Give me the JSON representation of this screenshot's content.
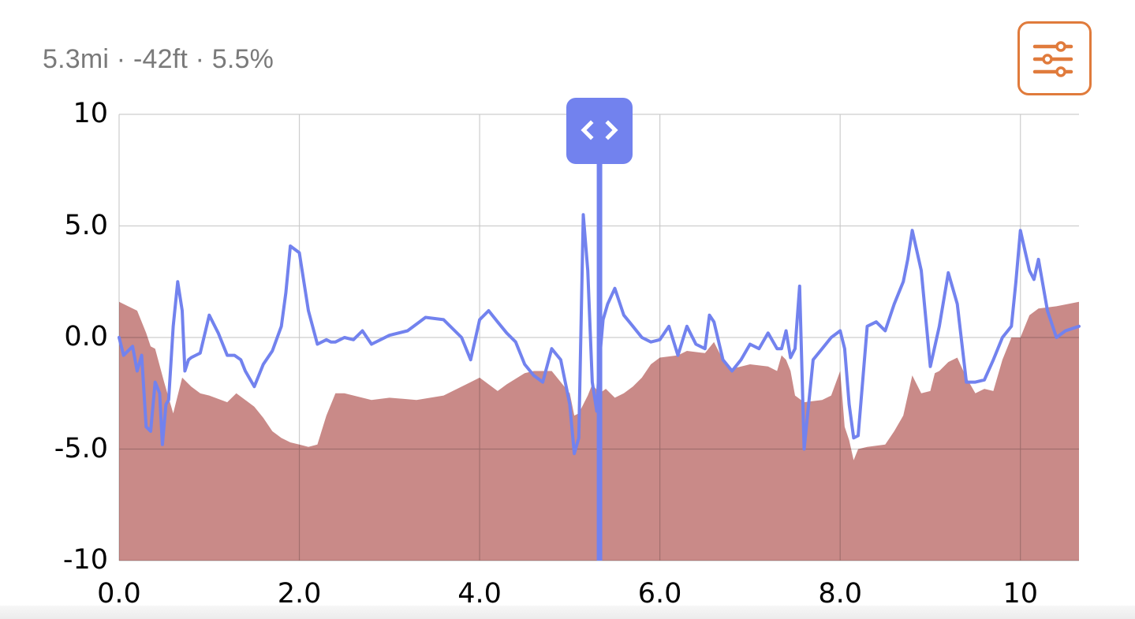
{
  "header": {
    "stats_text": "5.3mi · -42ft · 5.5%",
    "distance": "5.3mi",
    "elevation_change": "-42ft",
    "grade": "5.5%",
    "filter_button_icon": "sliders-icon"
  },
  "colors": {
    "grade_line": "#7282ee",
    "elevation_fill": "#c98a88",
    "gridline": "#c8c8c8",
    "gridline_on_fill": "#a86462",
    "accent": "#e07b3c",
    "stats_text": "#7a7a7a"
  },
  "scrubber": {
    "position_mi": 5.33,
    "icon": "chevron-left-right-icon"
  },
  "chart_data": {
    "type": "line",
    "title": "",
    "xlabel": "",
    "ylabel": "",
    "xlim": [
      0,
      10.65
    ],
    "ylim": [
      -10,
      10
    ],
    "grid": true,
    "x_ticks": [
      "0.0",
      "2.0",
      "4.0",
      "6.0",
      "8.0",
      "10"
    ],
    "y_ticks": [
      "10",
      "5.0",
      "0.0",
      "-5.0",
      "-10"
    ],
    "series": [
      {
        "name": "grade",
        "type": "line",
        "x": [
          0,
          0.05,
          0.15,
          0.2,
          0.25,
          0.3,
          0.35,
          0.4,
          0.45,
          0.48,
          0.52,
          0.55,
          0.6,
          0.65,
          0.7,
          0.73,
          0.77,
          0.8,
          0.85,
          0.9,
          1.0,
          1.1,
          1.2,
          1.28,
          1.35,
          1.4,
          1.5,
          1.6,
          1.7,
          1.8,
          1.85,
          1.9,
          2.0,
          2.1,
          2.2,
          2.3,
          2.35,
          2.4,
          2.5,
          2.6,
          2.7,
          2.8,
          3.0,
          3.2,
          3.4,
          3.6,
          3.8,
          3.9,
          4.0,
          4.1,
          4.2,
          4.3,
          4.4,
          4.5,
          4.6,
          4.7,
          4.8,
          4.9,
          5.0,
          5.05,
          5.1,
          5.15,
          5.2,
          5.25,
          5.3,
          5.33,
          5.37,
          5.42,
          5.5,
          5.6,
          5.7,
          5.8,
          5.9,
          6.0,
          6.1,
          6.2,
          6.3,
          6.4,
          6.5,
          6.55,
          6.6,
          6.7,
          6.8,
          6.9,
          7.0,
          7.1,
          7.2,
          7.3,
          7.35,
          7.4,
          7.45,
          7.5,
          7.55,
          7.6,
          7.7,
          7.8,
          7.9,
          8.0,
          8.05,
          8.1,
          8.15,
          8.2,
          8.3,
          8.4,
          8.5,
          8.6,
          8.7,
          8.75,
          8.8,
          8.9,
          9.0,
          9.1,
          9.2,
          9.3,
          9.4,
          9.5,
          9.6,
          9.7,
          9.8,
          9.9,
          9.95,
          10.0,
          10.1,
          10.15,
          10.2,
          10.3,
          10.4,
          10.5,
          10.65
        ],
        "y": [
          0,
          -0.8,
          -0.4,
          -1.5,
          -0.8,
          -4.0,
          -4.2,
          -2.0,
          -2.5,
          -4.8,
          -3.0,
          -2.8,
          0.5,
          2.5,
          1.2,
          -1.5,
          -1.0,
          -0.9,
          -0.8,
          -0.7,
          1.0,
          0.2,
          -0.8,
          -0.8,
          -1.0,
          -1.5,
          -2.2,
          -1.2,
          -0.6,
          0.5,
          2.0,
          4.1,
          3.8,
          1.2,
          -0.3,
          -0.1,
          -0.2,
          -0.2,
          0.0,
          -0.1,
          0.3,
          -0.3,
          0.1,
          0.3,
          0.9,
          0.8,
          0.0,
          -1.0,
          0.8,
          1.2,
          0.7,
          0.2,
          -0.2,
          -1.2,
          -1.7,
          -2.0,
          -0.5,
          -1.0,
          -3.0,
          -5.2,
          -4.5,
          5.5,
          3.0,
          -2.0,
          -3.3,
          -1.0,
          0.8,
          1.5,
          2.2,
          1.0,
          0.5,
          0.0,
          -0.2,
          -0.1,
          0.5,
          -0.8,
          0.5,
          -0.3,
          -0.5,
          1.0,
          0.7,
          -1.0,
          -1.5,
          -1.0,
          -0.3,
          -0.5,
          0.2,
          -0.5,
          -0.5,
          0.3,
          -0.9,
          -0.5,
          2.3,
          -5.0,
          -1.0,
          -0.5,
          0.0,
          0.3,
          -0.5,
          -3.0,
          -4.5,
          -4.4,
          0.5,
          0.7,
          0.3,
          1.5,
          2.5,
          3.5,
          4.8,
          3.0,
          -1.3,
          0.5,
          2.9,
          1.5,
          -2.0,
          -2.0,
          -1.9,
          -1.0,
          0.0,
          0.5,
          2.5,
          4.8,
          3.0,
          2.6,
          3.5,
          1.2,
          0.0,
          0.3,
          0.5
        ]
      },
      {
        "name": "elevation",
        "type": "area",
        "x": [
          0,
          0.1,
          0.2,
          0.3,
          0.35,
          0.4,
          0.5,
          0.6,
          0.7,
          0.8,
          0.9,
          1.0,
          1.2,
          1.3,
          1.4,
          1.5,
          1.6,
          1.7,
          1.8,
          1.9,
          2.0,
          2.1,
          2.2,
          2.3,
          2.4,
          2.5,
          2.8,
          3.0,
          3.3,
          3.6,
          3.9,
          4.0,
          4.2,
          4.3,
          4.5,
          4.6,
          4.8,
          5.0,
          5.05,
          5.1,
          5.15,
          5.2,
          5.25,
          5.33,
          5.4,
          5.5,
          5.6,
          5.7,
          5.8,
          5.9,
          6.0,
          6.2,
          6.3,
          6.5,
          6.6,
          6.7,
          6.8,
          7.0,
          7.2,
          7.3,
          7.35,
          7.4,
          7.45,
          7.5,
          7.6,
          7.8,
          7.9,
          8.0,
          8.05,
          8.1,
          8.15,
          8.2,
          8.3,
          8.5,
          8.6,
          8.7,
          8.8,
          8.9,
          9.0,
          9.05,
          9.1,
          9.2,
          9.3,
          9.4,
          9.5,
          9.6,
          9.7,
          9.8,
          9.9,
          10.0,
          10.1,
          10.2,
          10.4,
          10.65
        ],
        "y": [
          1.6,
          1.4,
          1.2,
          0.2,
          -0.4,
          -0.5,
          -2.0,
          -3.4,
          -1.8,
          -2.2,
          -2.5,
          -2.6,
          -2.9,
          -2.5,
          -2.8,
          -3.1,
          -3.6,
          -4.2,
          -4.5,
          -4.7,
          -4.8,
          -4.9,
          -4.8,
          -3.5,
          -2.5,
          -2.5,
          -2.8,
          -2.7,
          -2.8,
          -2.6,
          -2.0,
          -1.8,
          -2.4,
          -2.1,
          -1.6,
          -1.5,
          -1.5,
          -2.5,
          -3.5,
          -3.4,
          -3.0,
          -2.6,
          -2.1,
          -2.5,
          -2.3,
          -2.7,
          -2.5,
          -2.2,
          -1.8,
          -1.2,
          -0.9,
          -0.8,
          -0.6,
          -0.7,
          -0.2,
          -1.0,
          -1.4,
          -1.2,
          -1.3,
          -1.5,
          -0.8,
          -1.0,
          -1.5,
          -2.6,
          -2.9,
          -2.8,
          -2.6,
          -1.5,
          -4.0,
          -4.6,
          -5.5,
          -5.0,
          -4.9,
          -4.8,
          -4.2,
          -3.5,
          -1.7,
          -2.5,
          -2.4,
          -1.6,
          -1.5,
          -1.1,
          -0.9,
          -1.8,
          -2.5,
          -2.3,
          -2.4,
          -1.0,
          0.0,
          0.0,
          1.0,
          1.3,
          1.4,
          1.6
        ]
      }
    ]
  }
}
